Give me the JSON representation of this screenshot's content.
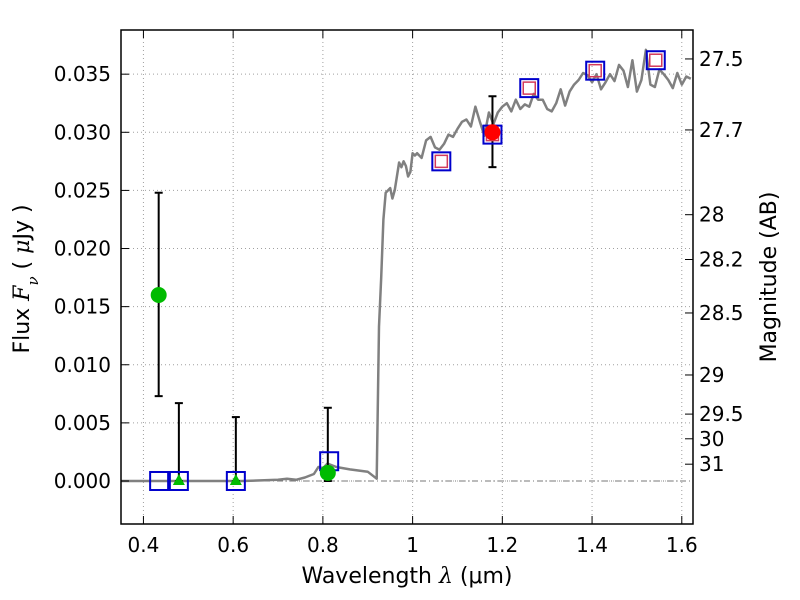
{
  "chart_data": {
    "type": "scatter",
    "xlabel": "Wavelength  λ (μm)",
    "xlabel_parts": {
      "main": "Wavelength  ",
      "sym": "λ",
      "unit": " (μm)"
    },
    "ylabel": "Flux  Fν  ( μJy )",
    "ylabel_parts": {
      "main": "Flux  ",
      "sym": "F",
      "sub": "ν",
      "unit1": "  ( ",
      "mu": "μ",
      "unit2": "Jy )"
    },
    "y2label": "Magnitude (AB)",
    "xlim": [
      0.35,
      1.625
    ],
    "ylim": [
      -0.0037,
      0.0388
    ],
    "grid": true,
    "x_ticks": [
      {
        "value": 0.4,
        "label": "0.4"
      },
      {
        "value": 0.6,
        "label": "0.6"
      },
      {
        "value": 0.8,
        "label": "0.8"
      },
      {
        "value": 1.0,
        "label": "1"
      },
      {
        "value": 1.2,
        "label": "1.2"
      },
      {
        "value": 1.4,
        "label": "1.4"
      },
      {
        "value": 1.6,
        "label": "1.6"
      }
    ],
    "y_ticks": [
      {
        "value": 0.0,
        "label": "0.000"
      },
      {
        "value": 0.005,
        "label": "0.005"
      },
      {
        "value": 0.01,
        "label": "0.010"
      },
      {
        "value": 0.015,
        "label": "0.015"
      },
      {
        "value": 0.02,
        "label": "0.020"
      },
      {
        "value": 0.025,
        "label": "0.025"
      },
      {
        "value": 0.03,
        "label": "0.030"
      },
      {
        "value": 0.035,
        "label": "0.035"
      }
    ],
    "mag_ticks": [
      {
        "value": 27.5,
        "label": "27.5"
      },
      {
        "value": 27.7,
        "label": "27.7"
      },
      {
        "value": 28.0,
        "label": "28"
      },
      {
        "value": 28.2,
        "label": "28.2"
      },
      {
        "value": 28.5,
        "label": "28.5"
      },
      {
        "value": 29.0,
        "label": "29"
      },
      {
        "value": 29.5,
        "label": "29.5"
      },
      {
        "value": 30.0,
        "label": "30"
      },
      {
        "value": 31.0,
        "label": "31"
      }
    ],
    "colors": {
      "template": "#808080",
      "detection": "#ff0000",
      "nondetection": "#00bb00",
      "model_box": "#0000cc",
      "model_box_inner": "#d33a5a",
      "errorbar": "#000000",
      "grid": "#a0a0a0"
    },
    "series": [
      {
        "name": "template_spectrum",
        "style": "line",
        "x": [
          0.35,
          0.5,
          0.62,
          0.7,
          0.72,
          0.74,
          0.76,
          0.78,
          0.79,
          0.8,
          0.81,
          0.83,
          0.86,
          0.9,
          0.92,
          0.925,
          0.93,
          0.935,
          0.94,
          0.95,
          0.955,
          0.96,
          0.965,
          0.97,
          0.975,
          0.98,
          0.985,
          0.99,
          0.995,
          1.0,
          1.005,
          1.01,
          1.02,
          1.03,
          1.04,
          1.05,
          1.06,
          1.07,
          1.08,
          1.09,
          1.1,
          1.11,
          1.12,
          1.13,
          1.14,
          1.15,
          1.16,
          1.17,
          1.18,
          1.19,
          1.2,
          1.21,
          1.22,
          1.23,
          1.24,
          1.25,
          1.26,
          1.27,
          1.28,
          1.29,
          1.3,
          1.31,
          1.32,
          1.33,
          1.34,
          1.35,
          1.36,
          1.37,
          1.38,
          1.39,
          1.4,
          1.41,
          1.42,
          1.43,
          1.44,
          1.45,
          1.46,
          1.47,
          1.48,
          1.49,
          1.5,
          1.51,
          1.52,
          1.53,
          1.54,
          1.55,
          1.56,
          1.57,
          1.58,
          1.59,
          1.6,
          1.61,
          1.62
        ],
        "y": [
          0.0,
          0.0,
          0.0,
          0.0001,
          0.0002,
          0.0001,
          0.0003,
          0.0006,
          0.0012,
          0.0011,
          0.0015,
          0.0012,
          0.001,
          0.0008,
          0.0002,
          0.0133,
          0.0175,
          0.0225,
          0.0248,
          0.0252,
          0.0243,
          0.025,
          0.0262,
          0.0274,
          0.027,
          0.0275,
          0.0271,
          0.0262,
          0.0266,
          0.0282,
          0.028,
          0.0282,
          0.0278,
          0.0293,
          0.0296,
          0.0287,
          0.0285,
          0.029,
          0.0298,
          0.0296,
          0.0303,
          0.0309,
          0.0311,
          0.0305,
          0.0322,
          0.0309,
          0.0297,
          0.0317,
          0.0307,
          0.0317,
          0.0322,
          0.0325,
          0.0318,
          0.0328,
          0.032,
          0.0324,
          0.0322,
          0.0333,
          0.0328,
          0.0328,
          0.032,
          0.0318,
          0.0325,
          0.0337,
          0.0323,
          0.0335,
          0.0341,
          0.0345,
          0.0351,
          0.0349,
          0.0343,
          0.035,
          0.0337,
          0.0343,
          0.035,
          0.0344,
          0.0358,
          0.0353,
          0.0339,
          0.0362,
          0.0335,
          0.0345,
          0.0371,
          0.0341,
          0.0339,
          0.0354,
          0.035,
          0.0345,
          0.0338,
          0.0351,
          0.0341,
          0.0348,
          0.0346
        ]
      },
      {
        "name": "detections",
        "style": "circle",
        "color": "#ff0000",
        "points": [
          {
            "x": 1.178,
            "y": 0.03,
            "yerr_low": 0.003,
            "yerr_high": 0.0031
          }
        ]
      },
      {
        "name": "nondetections_circle",
        "style": "circle",
        "color": "#00bb00",
        "points": [
          {
            "x": 0.434,
            "y": 0.016,
            "yerr_low": 0.0087,
            "yerr_high": 0.0088
          },
          {
            "x": 0.811,
            "y": 0.0007,
            "yerr_low": 0.0007,
            "yerr_high": 0.0056
          }
        ]
      },
      {
        "name": "nondetections_triangle",
        "style": "triangle",
        "color": "#00bb00",
        "points": [
          {
            "x": 0.479,
            "y": 0.0,
            "yerr_low": 0.0,
            "yerr_high": 0.0067
          },
          {
            "x": 0.606,
            "y": 0.0,
            "yerr_low": 0.0,
            "yerr_high": 0.0055
          }
        ]
      },
      {
        "name": "model_photometry",
        "style": "square",
        "color": "#0000cc",
        "points": [
          {
            "x": 0.435,
            "y": 0.0
          },
          {
            "x": 0.479,
            "y": 0.0
          },
          {
            "x": 0.606,
            "y": 0.0
          },
          {
            "x": 0.814,
            "y": 0.0017
          },
          {
            "x": 1.064,
            "y": 0.0275
          },
          {
            "x": 1.178,
            "y": 0.0298
          },
          {
            "x": 1.26,
            "y": 0.0338
          },
          {
            "x": 1.407,
            "y": 0.0353
          },
          {
            "x": 1.542,
            "y": 0.0362
          }
        ]
      }
    ]
  }
}
